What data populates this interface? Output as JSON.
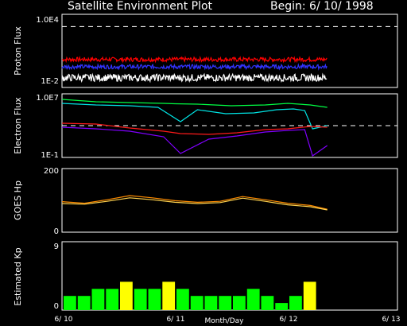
{
  "header": {
    "title": "Satellite Environment Plot",
    "begin": "Begin: 6/ 10/ 1998"
  },
  "x_axis": {
    "label": "Month/Day",
    "ticks": [
      "6/ 10",
      "6/ 11",
      "6/ 12",
      "6/ 13"
    ]
  },
  "colors": {
    "background": "#000000",
    "axes": "#ffffff",
    "proton_high": "#ff0000",
    "proton_mid": "#3333ff",
    "proton_low": "#ffffff",
    "electron_green": "#00ff44",
    "electron_cyan": "#00e5e5",
    "electron_red": "#ff1a1a",
    "electron_purple": "#8000ff",
    "goes_hp_1": "#ff8c00",
    "goes_hp_2": "#ffd24d",
    "kp_quiet": "#00ff00",
    "kp_active": "#ffff00"
  },
  "chart_data": [
    {
      "type": "line",
      "ylabel": "Proton Flux",
      "log_scale": true,
      "y_tick_labels": [
        "1.0E4",
        "1E-2"
      ],
      "ylim": [
        0.01,
        10000
      ],
      "reference_line": 1000,
      "x_days": [
        0,
        2.35
      ],
      "series": [
        {
          "color": "#ff0000",
          "approx_log10": 0.3
        },
        {
          "color": "#3333ff",
          "approx_log10": -0.3
        },
        {
          "color": "#ffffff",
          "approx_log10": -1.2
        }
      ]
    },
    {
      "type": "line",
      "ylabel": "Electron Flux",
      "log_scale": true,
      "y_tick_labels": [
        "1.0E7",
        "1E-1"
      ],
      "ylim": [
        0.1,
        10000000
      ],
      "reference_line": 1000,
      "series": [
        {
          "color": "#00ff44",
          "x": [
            0,
            0.3,
            0.6,
            0.9,
            1.0,
            1.2,
            1.5,
            1.8,
            2.0,
            2.2,
            2.35
          ],
          "y": [
            6.3,
            6.0,
            5.9,
            5.8,
            5.75,
            5.7,
            5.5,
            5.6,
            5.8,
            5.6,
            5.3
          ]
        },
        {
          "color": "#00e5e5",
          "x": [
            0,
            0.3,
            0.6,
            0.85,
            1.05,
            1.2,
            1.45,
            1.7,
            1.9,
            2.05,
            2.15,
            2.22,
            2.35
          ],
          "y": [
            5.8,
            5.6,
            5.5,
            5.3,
            3.5,
            5.0,
            4.5,
            4.6,
            5.0,
            5.1,
            4.9,
            2.6,
            3.0
          ]
        },
        {
          "color": "#ff1a1a",
          "x": [
            0,
            0.3,
            0.6,
            0.9,
            1.05,
            1.3,
            1.55,
            1.8,
            2.0,
            2.2,
            2.35
          ],
          "y": [
            3.3,
            3.2,
            2.7,
            2.3,
            2.0,
            1.9,
            2.1,
            2.5,
            2.6,
            2.9,
            2.8
          ]
        },
        {
          "color": "#8000ff",
          "x": [
            0,
            0.3,
            0.6,
            0.9,
            1.05,
            1.3,
            1.55,
            1.8,
            2.0,
            2.15,
            2.22,
            2.35
          ],
          "y": [
            2.8,
            2.6,
            2.3,
            1.6,
            -0.5,
            1.3,
            1.7,
            2.2,
            2.4,
            2.5,
            -0.8,
            0.5
          ]
        }
      ]
    },
    {
      "type": "line",
      "ylabel": "GOES Hp",
      "y_tick_labels": [
        "200",
        "0"
      ],
      "ylim": [
        0,
        200
      ],
      "series": [
        {
          "color": "#ff8c00",
          "x": [
            0,
            0.2,
            0.4,
            0.6,
            0.8,
            1.0,
            1.2,
            1.4,
            1.6,
            1.8,
            2.0,
            2.2,
            2.35
          ],
          "y": [
            96,
            91,
            102,
            115,
            108,
            99,
            94,
            97,
            112,
            102,
            91,
            84,
            72
          ]
        },
        {
          "color": "#ffd24d",
          "x": [
            0,
            0.2,
            0.4,
            0.6,
            0.8,
            1.0,
            1.2,
            1.4,
            1.6,
            1.8,
            2.0,
            2.2,
            2.35
          ],
          "y": [
            90,
            88,
            97,
            108,
            102,
            94,
            90,
            93,
            107,
            97,
            86,
            80,
            70
          ]
        }
      ]
    },
    {
      "type": "bar",
      "ylabel": "Estimated Kp",
      "y_tick_labels": [
        "9",
        "0"
      ],
      "ylim": [
        0,
        9
      ],
      "values": [
        2,
        2,
        3,
        3,
        4,
        3,
        3,
        4,
        3,
        2,
        2,
        2,
        2,
        3,
        2,
        1,
        2,
        4
      ],
      "bar_colors": [
        "#00ff00",
        "#00ff00",
        "#00ff00",
        "#00ff00",
        "#ffff00",
        "#00ff00",
        "#00ff00",
        "#ffff00",
        "#00ff00",
        "#00ff00",
        "#00ff00",
        "#00ff00",
        "#00ff00",
        "#00ff00",
        "#00ff00",
        "#00ff00",
        "#00ff00",
        "#ffff00"
      ]
    }
  ]
}
